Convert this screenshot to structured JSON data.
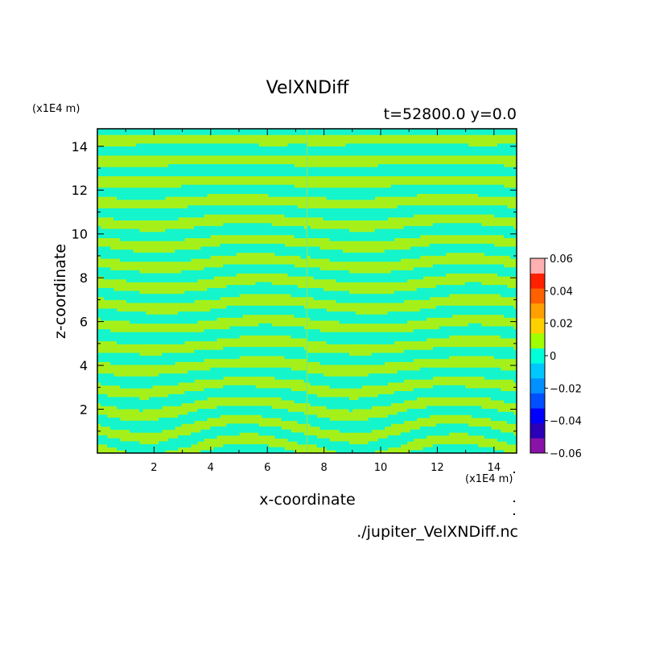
{
  "chart_data": {
    "type": "heatmap",
    "title": "VelXNDiff",
    "subtitle": "t=52800.0 y=0.0",
    "xlabel": "x-coordinate",
    "ylabel": "z-coordinate",
    "x_unit": "(x1E4 m)",
    "y_unit": "(x1E4 m)",
    "xlim": [
      0,
      14.8
    ],
    "ylim": [
      0,
      14.8
    ],
    "x_ticks": [
      2,
      4,
      6,
      8,
      10,
      12,
      14
    ],
    "y_ticks": [
      2,
      4,
      6,
      8,
      10,
      12,
      14
    ],
    "colorbar": {
      "ticks": [
        "0.06",
        "0.04",
        "0.02",
        "0",
        "−0.02",
        "−0.04",
        "−0.06"
      ],
      "levels": [
        -0.06,
        -0.05,
        -0.04,
        -0.03,
        -0.02,
        -0.01,
        0,
        0.01,
        0.02,
        0.03,
        0.04,
        0.05,
        0.06
      ],
      "colors": [
        "#8a12a8",
        "#2a00b8",
        "#0000ff",
        "#0050ff",
        "#0090ff",
        "#00c8ff",
        "#00ffd8",
        "#a0ff00",
        "#ffd000",
        "#ffa000",
        "#ff6000",
        "#ff2000",
        "#ffb0b0"
      ]
    },
    "field_colors": {
      "positive": "#a6f01a",
      "negative": "#14f5cc"
    }
  },
  "footer": {
    "filename": "./jupiter_VelXNDiff.nc"
  }
}
